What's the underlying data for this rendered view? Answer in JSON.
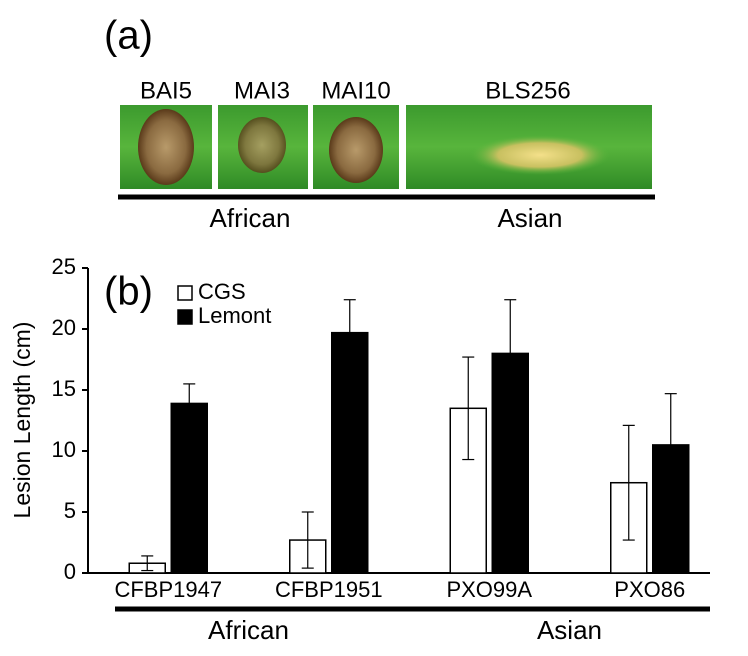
{
  "panel_a": {
    "label": "(a)",
    "images": [
      "BAI5",
      "MAI3",
      "MAI10",
      "BLS256"
    ],
    "groups": [
      "African",
      "Asian"
    ]
  },
  "chart_data": {
    "type": "bar",
    "panel_label": "(b)",
    "y_label": "Lesion Length (cm)",
    "categories": [
      "CFBP1947",
      "CFBP1951",
      "PXO99A",
      "PXO86"
    ],
    "series": [
      {
        "name": "CGS",
        "color": "#ffffff",
        "values": [
          0.8,
          2.7,
          13.5,
          7.4
        ],
        "errors": [
          0.6,
          2.3,
          4.2,
          4.7
        ]
      },
      {
        "name": "Lemont",
        "color": "#000000",
        "values": [
          13.9,
          19.7,
          18.0,
          10.5
        ],
        "errors": [
          1.6,
          2.7,
          4.4,
          4.2
        ]
      }
    ],
    "group_labels": [
      "African",
      "Asian"
    ],
    "ylim": [
      0,
      25
    ],
    "yticks": [
      0,
      5,
      10,
      15,
      20,
      25
    ],
    "grid": false,
    "legend": "upper left"
  }
}
